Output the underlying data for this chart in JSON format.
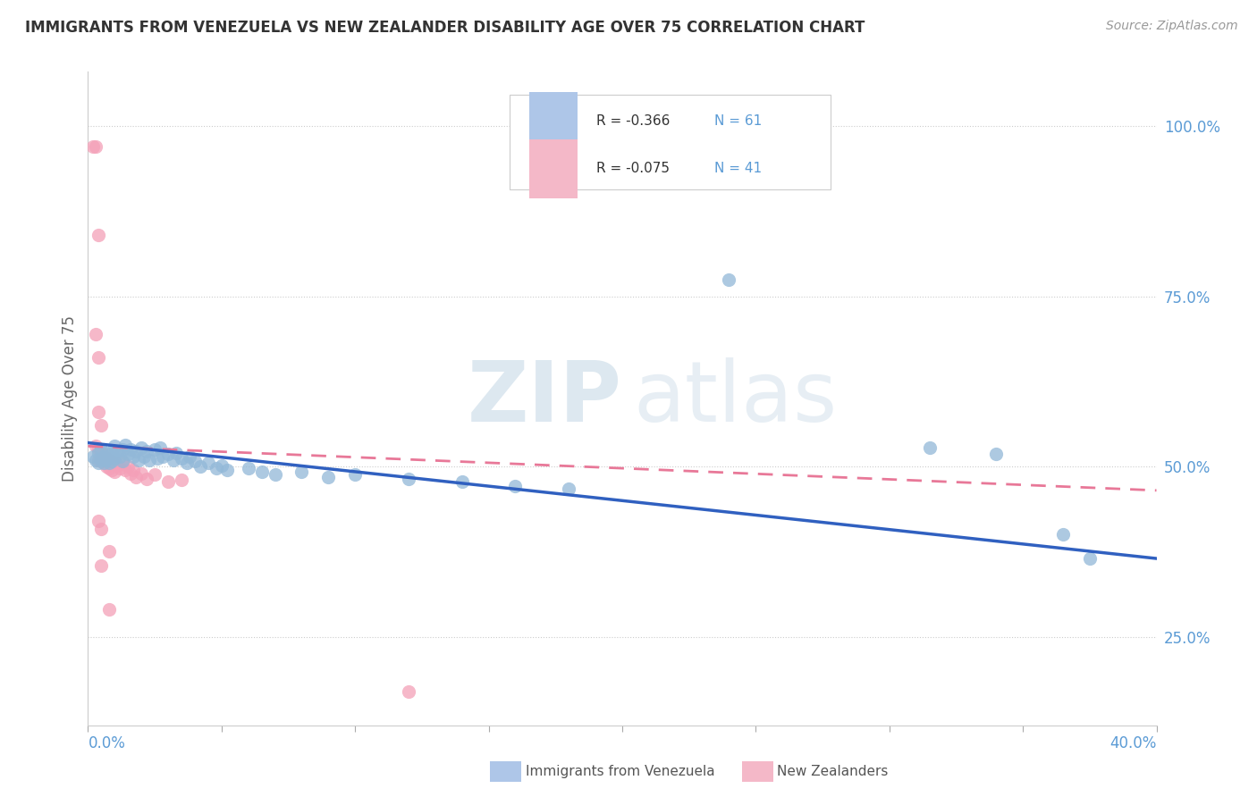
{
  "title": "IMMIGRANTS FROM VENEZUELA VS NEW ZEALANDER DISABILITY AGE OVER 75 CORRELATION CHART",
  "source": "Source: ZipAtlas.com",
  "ylabel": "Disability Age Over 75",
  "legend1_label_r": "R = -0.366",
  "legend1_label_n": "N = 61",
  "legend2_label_r": "R = -0.075",
  "legend2_label_n": "N = 41",
  "legend1_color": "#aec6e8",
  "legend2_color": "#f4b8c8",
  "dot_color_blue": "#92b8d8",
  "dot_color_pink": "#f4a0b8",
  "trendline_color_blue": "#3060c0",
  "trendline_color_pink": "#e87898",
  "background_color": "#ffffff",
  "xlim": [
    0.0,
    0.4
  ],
  "ylim": [
    0.12,
    1.08
  ],
  "blue_trend_x": [
    0.0,
    0.4
  ],
  "blue_trend_y": [
    0.535,
    0.365
  ],
  "pink_trend_x": [
    0.0,
    0.4
  ],
  "pink_trend_y": [
    0.53,
    0.465
  ],
  "blue_dots": [
    [
      0.002,
      0.515
    ],
    [
      0.003,
      0.51
    ],
    [
      0.004,
      0.52
    ],
    [
      0.004,
      0.505
    ],
    [
      0.005,
      0.525
    ],
    [
      0.005,
      0.51
    ],
    [
      0.006,
      0.515
    ],
    [
      0.006,
      0.505
    ],
    [
      0.007,
      0.52
    ],
    [
      0.007,
      0.51
    ],
    [
      0.008,
      0.515
    ],
    [
      0.008,
      0.505
    ],
    [
      0.009,
      0.52
    ],
    [
      0.009,
      0.508
    ],
    [
      0.01,
      0.53
    ],
    [
      0.01,
      0.512
    ],
    [
      0.011,
      0.522
    ],
    [
      0.012,
      0.515
    ],
    [
      0.013,
      0.525
    ],
    [
      0.013,
      0.508
    ],
    [
      0.014,
      0.532
    ],
    [
      0.015,
      0.518
    ],
    [
      0.016,
      0.525
    ],
    [
      0.017,
      0.515
    ],
    [
      0.018,
      0.522
    ],
    [
      0.019,
      0.51
    ],
    [
      0.02,
      0.528
    ],
    [
      0.021,
      0.515
    ],
    [
      0.022,
      0.522
    ],
    [
      0.023,
      0.51
    ],
    [
      0.025,
      0.525
    ],
    [
      0.026,
      0.512
    ],
    [
      0.027,
      0.528
    ],
    [
      0.028,
      0.515
    ],
    [
      0.03,
      0.518
    ],
    [
      0.032,
      0.51
    ],
    [
      0.033,
      0.52
    ],
    [
      0.035,
      0.512
    ],
    [
      0.037,
      0.505
    ],
    [
      0.038,
      0.515
    ],
    [
      0.04,
      0.508
    ],
    [
      0.042,
      0.5
    ],
    [
      0.045,
      0.505
    ],
    [
      0.048,
      0.498
    ],
    [
      0.05,
      0.502
    ],
    [
      0.052,
      0.495
    ],
    [
      0.06,
      0.498
    ],
    [
      0.065,
      0.492
    ],
    [
      0.07,
      0.488
    ],
    [
      0.08,
      0.492
    ],
    [
      0.09,
      0.485
    ],
    [
      0.1,
      0.488
    ],
    [
      0.12,
      0.482
    ],
    [
      0.14,
      0.478
    ],
    [
      0.16,
      0.472
    ],
    [
      0.18,
      0.468
    ],
    [
      0.24,
      0.775
    ],
    [
      0.315,
      0.528
    ],
    [
      0.34,
      0.518
    ],
    [
      0.365,
      0.4
    ],
    [
      0.375,
      0.365
    ]
  ],
  "pink_dots": [
    [
      0.002,
      0.97
    ],
    [
      0.003,
      0.97
    ],
    [
      0.004,
      0.84
    ],
    [
      0.003,
      0.695
    ],
    [
      0.004,
      0.66
    ],
    [
      0.004,
      0.58
    ],
    [
      0.005,
      0.56
    ],
    [
      0.003,
      0.53
    ],
    [
      0.004,
      0.525
    ],
    [
      0.004,
      0.51
    ],
    [
      0.005,
      0.52
    ],
    [
      0.005,
      0.508
    ],
    [
      0.006,
      0.518
    ],
    [
      0.006,
      0.505
    ],
    [
      0.007,
      0.512
    ],
    [
      0.007,
      0.5
    ],
    [
      0.008,
      0.51
    ],
    [
      0.008,
      0.498
    ],
    [
      0.009,
      0.508
    ],
    [
      0.009,
      0.495
    ],
    [
      0.01,
      0.505
    ],
    [
      0.01,
      0.492
    ],
    [
      0.011,
      0.502
    ],
    [
      0.012,
      0.498
    ],
    [
      0.013,
      0.505
    ],
    [
      0.014,
      0.495
    ],
    [
      0.015,
      0.5
    ],
    [
      0.016,
      0.49
    ],
    [
      0.017,
      0.495
    ],
    [
      0.018,
      0.485
    ],
    [
      0.02,
      0.49
    ],
    [
      0.022,
      0.482
    ],
    [
      0.025,
      0.488
    ],
    [
      0.03,
      0.478
    ],
    [
      0.035,
      0.48
    ],
    [
      0.004,
      0.42
    ],
    [
      0.005,
      0.408
    ],
    [
      0.008,
      0.375
    ],
    [
      0.005,
      0.355
    ],
    [
      0.008,
      0.29
    ],
    [
      0.12,
      0.17
    ]
  ]
}
